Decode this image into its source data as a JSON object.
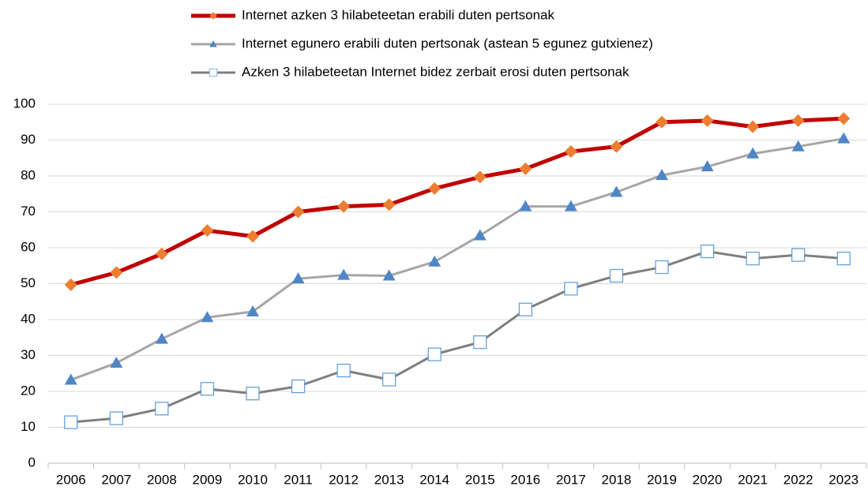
{
  "chart_data": {
    "type": "line",
    "categories": [
      "2006",
      "2007",
      "2008",
      "2009",
      "2010",
      "2011",
      "2012",
      "2013",
      "2014",
      "2015",
      "2016",
      "2017",
      "2018",
      "2019",
      "2020",
      "2021",
      "2022",
      "2023"
    ],
    "series": [
      {
        "name": "Internet azken 3 hilabeteetan erabili duten pertsonak",
        "color": "#c00000",
        "marker": "diamond",
        "marker_color": "#ed7d31",
        "line_width": 5,
        "values": [
          49.7,
          53.1,
          58.3,
          64.8,
          63.2,
          70,
          71.5,
          72,
          76.5,
          79.7,
          82,
          86.8,
          88.2,
          95,
          95.4,
          93.7,
          95.4,
          96
        ]
      },
      {
        "name": "Internet egunero erabili duten pertsonak (astean 5 egunez gutxienez)",
        "color": "#a6a6a6",
        "marker": "triangle",
        "marker_color": "#4f86c6",
        "line_width": 3,
        "values": [
          23.2,
          27.9,
          34.6,
          40.6,
          42.2,
          51.4,
          52.4,
          52.2,
          56.1,
          63.4,
          71.5,
          71.5,
          75.5,
          80.2,
          82.6,
          86.2,
          88.2,
          90.4
        ]
      },
      {
        "name": "Azken 3 hilabeteetan Internet bidez zerbait erosi duten pertsonak",
        "color": "#7f7f7f",
        "marker": "square",
        "marker_color": "#5b9bd5",
        "line_width": 3,
        "values": [
          11.4,
          12.5,
          15.2,
          20.7,
          19.4,
          21.4,
          25.8,
          23.3,
          30.3,
          33.7,
          42.8,
          48.6,
          52.2,
          54.6,
          59,
          57,
          58,
          57
        ]
      }
    ],
    "ylim": [
      0,
      100
    ],
    "yticks": [
      0,
      10,
      20,
      30,
      40,
      50,
      60,
      70,
      80,
      90,
      100
    ],
    "grid": true,
    "legend": "top"
  }
}
